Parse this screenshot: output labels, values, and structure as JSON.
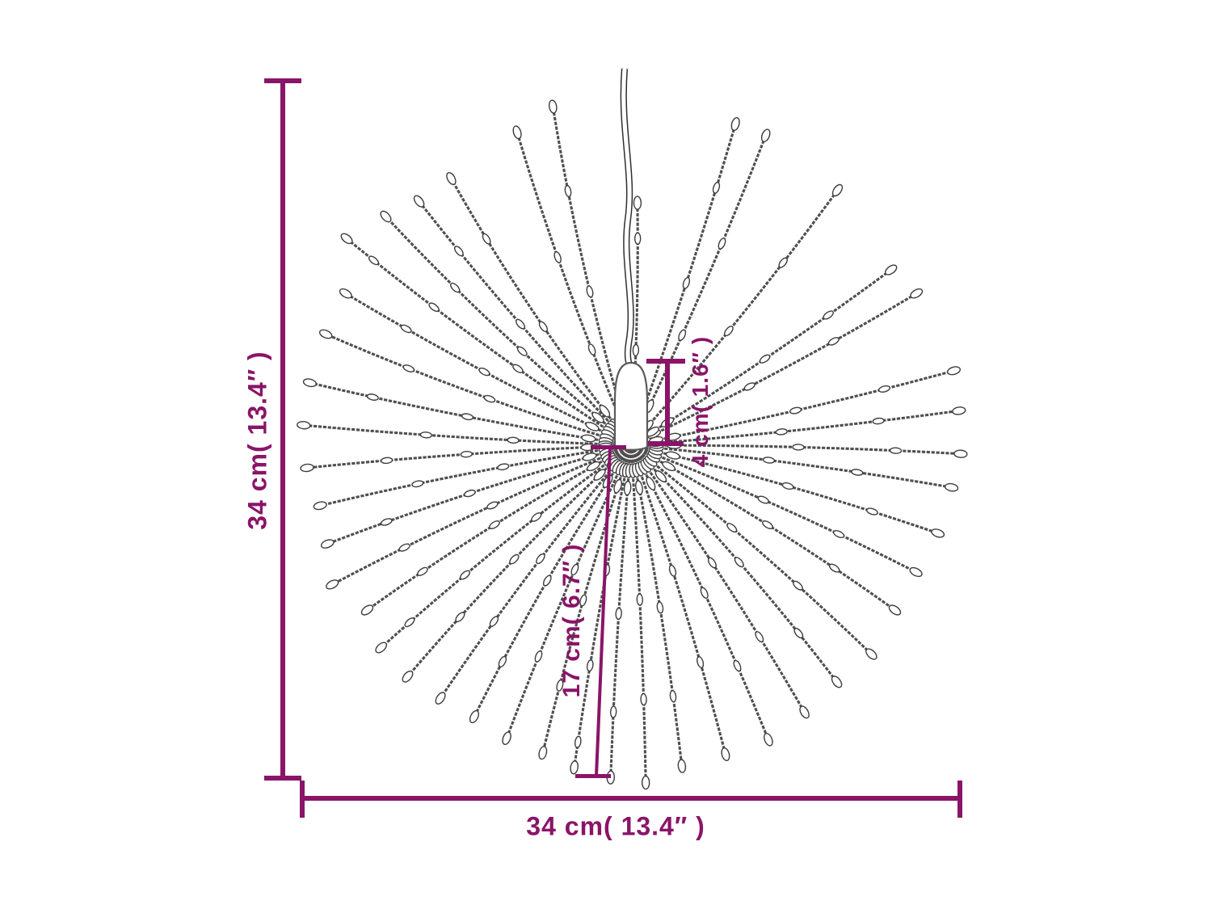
{
  "dimensions": {
    "overall_height": {
      "label": "34 cm( 13.4″ )"
    },
    "overall_width": {
      "label": "34 cm( 13.4″ )"
    },
    "plug_height": {
      "label": "4 cm( 1.6″ )"
    },
    "branch_length": {
      "label": "17 cm( 6.7″ )"
    }
  },
  "colors": {
    "dimension_accent": "#8a1468",
    "wire_stroke": "#4f4f4f",
    "bead_outline": "#3d3d3d",
    "bead_fill": "#ffffff",
    "background": "#ffffff"
  }
}
